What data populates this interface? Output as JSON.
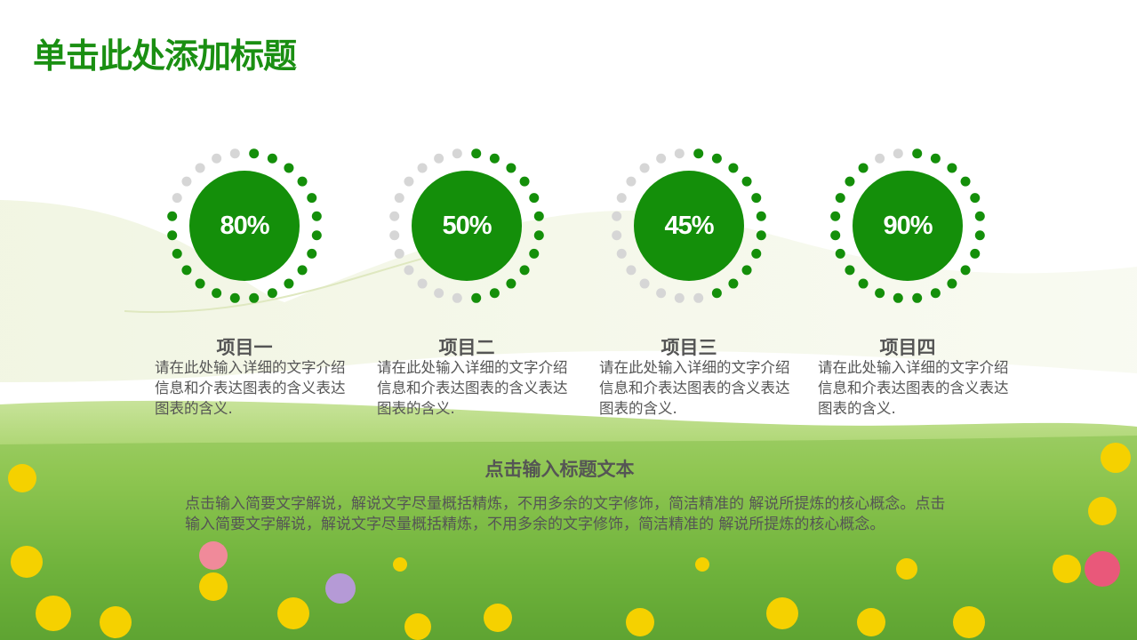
{
  "title": "单击此处添加标题",
  "colors": {
    "accent": "#148f0a",
    "inactive_dot": "#d6d6d6",
    "text": "#555555"
  },
  "items": [
    {
      "value_label": "80%",
      "value": 80,
      "title": "项目一",
      "desc": "请在此处输入详细的文字介绍信息和介表达图表的含义表达图表的含义."
    },
    {
      "value_label": "50%",
      "value": 50,
      "title": "项目二",
      "desc": "请在此处输入详细的文字介绍信息和介表达图表的含义表达图表的含义."
    },
    {
      "value_label": "45%",
      "value": 45,
      "title": "项目三",
      "desc": "请在此处输入详细的文字介绍信息和介表达图表的含义表达图表的含义."
    },
    {
      "value_label": "90%",
      "value": 90,
      "title": "项目四",
      "desc": "请在此处输入详细的文字介绍信息和介表达图表的含义表达图表的含义."
    }
  ],
  "summary": {
    "title": "点击输入标题文本",
    "body": "点击输入简要文字解说，解说文字尽量概括精炼，不用多余的文字修饰，简洁精准的 解说所提炼的核心概念。点击输入简要文字解说，解说文字尽量概括精炼，不用多余的文字修饰，简洁精准的 解说所提炼的核心概念。"
  }
}
